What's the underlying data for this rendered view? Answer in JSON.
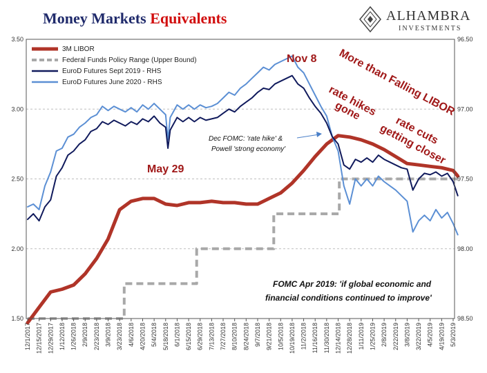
{
  "title": {
    "part1": "Money Markets",
    "part2": "Equivalents"
  },
  "logo": {
    "brand": "ALHAMBRA",
    "sub": "INVESTMENTS"
  },
  "chart_data": {
    "type": "line",
    "x_tick_labels": [
      "12/1/2017",
      "12/15/2017",
      "12/29/2017",
      "1/12/2018",
      "1/26/2018",
      "2/9/2018",
      "2/23/2018",
      "3/9/2018",
      "3/23/2018",
      "4/6/2018",
      "4/20/2018",
      "5/4/2018",
      "5/18/2018",
      "6/1/2018",
      "6/15/2018",
      "6/29/2018",
      "7/13/2018",
      "7/27/2018",
      "8/10/2018",
      "8/24/2018",
      "9/7/2018",
      "9/21/2018",
      "10/5/2018",
      "10/19/2018",
      "11/2/2018",
      "11/16/2018",
      "11/30/2018",
      "12/14/2018",
      "12/28/2018",
      "1/11/2019",
      "1/25/2019",
      "2/8/2019",
      "2/22/2019",
      "3/8/2019",
      "3/22/2019",
      "4/5/2019",
      "4/19/2019",
      "5/3/2019"
    ],
    "y_left": {
      "min": 1.5,
      "max": 3.5,
      "ticks": [
        "1.50",
        "2.00",
        "2.50",
        "3.00",
        "3.50"
      ]
    },
    "y_right": {
      "min": 96.5,
      "max": 98.5,
      "inverted": true,
      "ticks": [
        "96.50",
        "97.00",
        "97.50",
        "98.00",
        "98.50"
      ]
    },
    "grid": "horizontal dashed",
    "legend_position": "top-left",
    "series": [
      {
        "name": "3M LIBOR",
        "axis": "left",
        "color": "#b03428",
        "points": [
          [
            0,
            1.47
          ],
          [
            1,
            1.58
          ],
          [
            2,
            1.69
          ],
          [
            3,
            1.71
          ],
          [
            4,
            1.74
          ],
          [
            5,
            1.82
          ],
          [
            6,
            1.93
          ],
          [
            7,
            2.07
          ],
          [
            8,
            2.28
          ],
          [
            9,
            2.34
          ],
          [
            10,
            2.36
          ],
          [
            11,
            2.36
          ],
          [
            12,
            2.32
          ],
          [
            13,
            2.31
          ],
          [
            14,
            2.33
          ],
          [
            15,
            2.33
          ],
          [
            16,
            2.34
          ],
          [
            17,
            2.33
          ],
          [
            18,
            2.33
          ],
          [
            19,
            2.32
          ],
          [
            20,
            2.32
          ],
          [
            21,
            2.36
          ],
          [
            22,
            2.4
          ],
          [
            23,
            2.47
          ],
          [
            24,
            2.56
          ],
          [
            25,
            2.66
          ],
          [
            26,
            2.75
          ],
          [
            27,
            2.81
          ],
          [
            28,
            2.8
          ],
          [
            29,
            2.78
          ],
          [
            30,
            2.75
          ],
          [
            31,
            2.71
          ],
          [
            32,
            2.66
          ],
          [
            33,
            2.61
          ],
          [
            34,
            2.6
          ],
          [
            35,
            2.59
          ],
          [
            36,
            2.58
          ],
          [
            37,
            2.56
          ],
          [
            37.4,
            2.52
          ]
        ]
      },
      {
        "name": "Federal Funds Policy Range (Upper Bound)",
        "axis": "left",
        "color": "#a8a8a8",
        "dashed": true,
        "points": [
          [
            0,
            1.5
          ],
          [
            8.4,
            1.5
          ],
          [
            8.4,
            1.75
          ],
          [
            14.7,
            1.75
          ],
          [
            14.7,
            2.0
          ],
          [
            21.4,
            2.0
          ],
          [
            21.4,
            2.25
          ],
          [
            27.1,
            2.25
          ],
          [
            27.1,
            2.5
          ],
          [
            37.4,
            2.5
          ]
        ]
      },
      {
        "name": "EuroD Futures Sept 2019 - RHS",
        "axis": "right",
        "color": "#101a5c",
        "points": [
          [
            0,
            97.79
          ],
          [
            0.5,
            97.75
          ],
          [
            1,
            97.8
          ],
          [
            1.5,
            97.7
          ],
          [
            2,
            97.65
          ],
          [
            2.5,
            97.48
          ],
          [
            3,
            97.42
          ],
          [
            3.5,
            97.33
          ],
          [
            4,
            97.3
          ],
          [
            4.5,
            97.25
          ],
          [
            5,
            97.22
          ],
          [
            5.5,
            97.16
          ],
          [
            6,
            97.14
          ],
          [
            6.5,
            97.09
          ],
          [
            7,
            97.11
          ],
          [
            7.5,
            97.08
          ],
          [
            8,
            97.1
          ],
          [
            8.5,
            97.12
          ],
          [
            9,
            97.09
          ],
          [
            9.5,
            97.11
          ],
          [
            10,
            97.07
          ],
          [
            10.5,
            97.09
          ],
          [
            11,
            97.05
          ],
          [
            11.5,
            97.1
          ],
          [
            12,
            97.13
          ],
          [
            12.2,
            97.28
          ],
          [
            12.4,
            97.15
          ],
          [
            13,
            97.06
          ],
          [
            13.5,
            97.09
          ],
          [
            14,
            97.06
          ],
          [
            14.5,
            97.09
          ],
          [
            15,
            97.06
          ],
          [
            15.5,
            97.08
          ],
          [
            16,
            97.07
          ],
          [
            16.5,
            97.06
          ],
          [
            17,
            97.03
          ],
          [
            17.5,
            97.0
          ],
          [
            18,
            97.02
          ],
          [
            18.5,
            96.98
          ],
          [
            19,
            96.95
          ],
          [
            19.5,
            96.92
          ],
          [
            20,
            96.88
          ],
          [
            20.5,
            96.85
          ],
          [
            21,
            96.86
          ],
          [
            21.5,
            96.82
          ],
          [
            22,
            96.8
          ],
          [
            22.5,
            96.78
          ],
          [
            23,
            96.76
          ],
          [
            23.5,
            96.82
          ],
          [
            24,
            96.85
          ],
          [
            24.5,
            96.92
          ],
          [
            25,
            96.98
          ],
          [
            25.5,
            97.03
          ],
          [
            26,
            97.1
          ],
          [
            26.5,
            97.2
          ],
          [
            27,
            97.25
          ],
          [
            27.5,
            97.4
          ],
          [
            28,
            97.43
          ],
          [
            28.5,
            97.36
          ],
          [
            29,
            97.38
          ],
          [
            29.5,
            97.35
          ],
          [
            30,
            97.38
          ],
          [
            30.5,
            97.33
          ],
          [
            31,
            97.36
          ],
          [
            31.5,
            97.38
          ],
          [
            32,
            97.4
          ],
          [
            32.5,
            97.42
          ],
          [
            33,
            97.43
          ],
          [
            33.5,
            97.58
          ],
          [
            34,
            97.5
          ],
          [
            34.5,
            97.46
          ],
          [
            35,
            97.47
          ],
          [
            35.5,
            97.45
          ],
          [
            36,
            97.48
          ],
          [
            36.5,
            97.46
          ],
          [
            37,
            97.52
          ],
          [
            37.4,
            97.62
          ]
        ]
      },
      {
        "name": "EuroD Futures June 2020 - RHS",
        "axis": "right",
        "color": "#5b8fd4",
        "points": [
          [
            0,
            97.7
          ],
          [
            0.5,
            97.68
          ],
          [
            1,
            97.72
          ],
          [
            1.5,
            97.55
          ],
          [
            2,
            97.45
          ],
          [
            2.5,
            97.3
          ],
          [
            3,
            97.28
          ],
          [
            3.5,
            97.2
          ],
          [
            4,
            97.18
          ],
          [
            4.5,
            97.13
          ],
          [
            5,
            97.1
          ],
          [
            5.5,
            97.06
          ],
          [
            6,
            97.04
          ],
          [
            6.5,
            96.98
          ],
          [
            7,
            97.01
          ],
          [
            7.5,
            96.98
          ],
          [
            8,
            97.0
          ],
          [
            8.5,
            97.02
          ],
          [
            9,
            96.99
          ],
          [
            9.5,
            97.02
          ],
          [
            10,
            96.97
          ],
          [
            10.5,
            97.0
          ],
          [
            11,
            96.96
          ],
          [
            11.5,
            97.0
          ],
          [
            12,
            97.04
          ],
          [
            12.2,
            97.22
          ],
          [
            12.4,
            97.06
          ],
          [
            13,
            96.97
          ],
          [
            13.5,
            97.0
          ],
          [
            14,
            96.97
          ],
          [
            14.5,
            97.0
          ],
          [
            15,
            96.97
          ],
          [
            15.5,
            96.99
          ],
          [
            16,
            96.98
          ],
          [
            16.5,
            96.96
          ],
          [
            17,
            96.92
          ],
          [
            17.5,
            96.88
          ],
          [
            18,
            96.9
          ],
          [
            18.5,
            96.85
          ],
          [
            19,
            96.82
          ],
          [
            19.5,
            96.78
          ],
          [
            20,
            96.74
          ],
          [
            20.5,
            96.7
          ],
          [
            21,
            96.72
          ],
          [
            21.5,
            96.68
          ],
          [
            22,
            96.66
          ],
          [
            22.5,
            96.64
          ],
          [
            23,
            96.62
          ],
          [
            23.5,
            96.7
          ],
          [
            24,
            96.74
          ],
          [
            24.5,
            96.82
          ],
          [
            25,
            96.9
          ],
          [
            25.5,
            96.98
          ],
          [
            26,
            97.05
          ],
          [
            26.5,
            97.2
          ],
          [
            27,
            97.3
          ],
          [
            27.5,
            97.55
          ],
          [
            28,
            97.68
          ],
          [
            28.5,
            97.5
          ],
          [
            29,
            97.55
          ],
          [
            29.5,
            97.5
          ],
          [
            30,
            97.55
          ],
          [
            30.5,
            97.48
          ],
          [
            31,
            97.52
          ],
          [
            31.5,
            97.55
          ],
          [
            32,
            97.58
          ],
          [
            32.5,
            97.62
          ],
          [
            33,
            97.66
          ],
          [
            33.5,
            97.88
          ],
          [
            34,
            97.8
          ],
          [
            34.5,
            97.76
          ],
          [
            35,
            97.8
          ],
          [
            35.5,
            97.72
          ],
          [
            36,
            97.78
          ],
          [
            36.5,
            97.74
          ],
          [
            37,
            97.82
          ],
          [
            37.4,
            97.9
          ]
        ]
      }
    ],
    "annotations": [
      {
        "id": "nov8",
        "text": "Nov 8",
        "style": "red"
      },
      {
        "id": "may29",
        "text": "May 29",
        "style": "red"
      },
      {
        "id": "more-libor",
        "text": "More than Falling LIBOR",
        "style": "red-rot"
      },
      {
        "id": "rate-hikes-1",
        "text": "rate hikes",
        "style": "red-rot"
      },
      {
        "id": "rate-hikes-2",
        "text": "gone",
        "style": "red-rot"
      },
      {
        "id": "rate-cuts-1",
        "text": "rate cuts",
        "style": "red-rot"
      },
      {
        "id": "rate-cuts-2",
        "text": "getting closer",
        "style": "red-rot"
      },
      {
        "id": "dec-fomc-1",
        "text": "Dec FOMC: 'rate hike' &",
        "style": "black"
      },
      {
        "id": "dec-fomc-2",
        "text": "Powell 'strong economy'",
        "style": "black"
      },
      {
        "id": "fomc-apr-1",
        "text": "FOMC Apr 2019: 'if global economic and",
        "style": "bold"
      },
      {
        "id": "fomc-apr-2",
        "text": "financial conditions continued to improve'",
        "style": "bold"
      }
    ]
  }
}
